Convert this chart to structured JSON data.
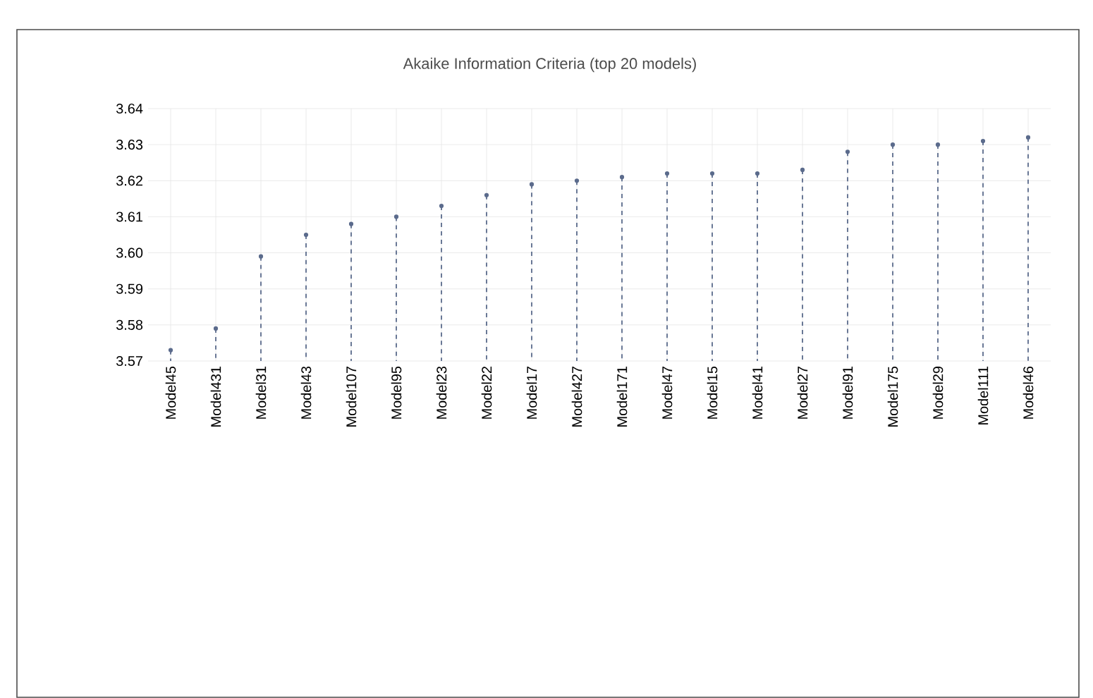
{
  "chart_data": {
    "type": "lollipop",
    "title": "Akaike Information Criteria (top 20 models)",
    "categories": [
      "Model45",
      "Model431",
      "Model31",
      "Model43",
      "Model107",
      "Model95",
      "Model23",
      "Model22",
      "Model17",
      "Model427",
      "Model171",
      "Model47",
      "Model15",
      "Model41",
      "Model27",
      "Model91",
      "Model175",
      "Model29",
      "Model111",
      "Model46"
    ],
    "values": [
      3.573,
      3.579,
      3.599,
      3.605,
      3.608,
      3.61,
      3.613,
      3.616,
      3.619,
      3.62,
      3.621,
      3.622,
      3.622,
      3.622,
      3.623,
      3.628,
      3.63,
      3.63,
      3.631,
      3.632
    ],
    "color": "#5b6b8c",
    "line_style": "dashed",
    "marker": "circle",
    "ylim": [
      3.57,
      3.64
    ],
    "yticks": [
      3.57,
      3.58,
      3.59,
      {
        "value": 3.6,
        "label": "3.60"
      },
      3.61,
      3.62,
      3.63,
      3.64
    ],
    "grid": true
  }
}
